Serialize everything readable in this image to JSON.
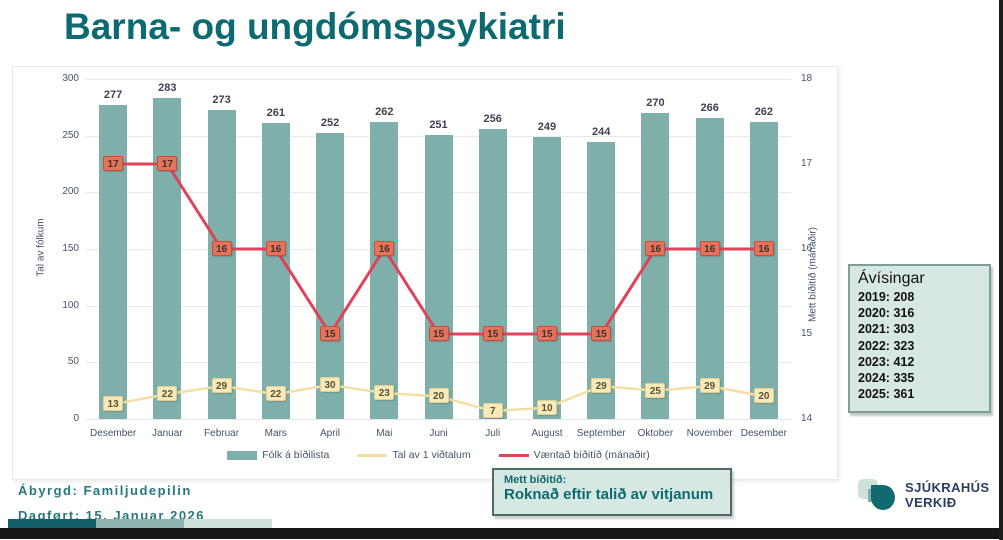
{
  "page_title": "Barna- og ungdómspsykiatri",
  "chart_data": {
    "type": "bar",
    "subtype": "combo bar+line, dual axis",
    "categories": [
      "Desember",
      "Januar",
      "Februar",
      "Mars",
      "April",
      "Mai",
      "Juni",
      "Juli",
      "August",
      "September",
      "Oktober",
      "November",
      "Desember"
    ],
    "series": [
      {
        "name": "Fólk á bíðilista",
        "type": "bar",
        "axis": "left",
        "color": "#7fafaa",
        "values": [
          277,
          283,
          273,
          261,
          252,
          262,
          251,
          256,
          249,
          244,
          270,
          266,
          262
        ]
      },
      {
        "name": "Tal av 1 viðtalum",
        "type": "line",
        "axis": "left",
        "color": "#f3dfa3",
        "marker_bg": "#f8e9ba",
        "marker_border": "#e3cf92",
        "marker_text_color": "#5c5032",
        "values": [
          13,
          22,
          29,
          22,
          30,
          23,
          20,
          7,
          10,
          29,
          25,
          29,
          20
        ]
      },
      {
        "name": "Væntað bíðitíð (mánaðir)",
        "type": "line",
        "axis": "right",
        "color": "#e04257",
        "marker_bg": "#e2745c",
        "marker_border": "#c94c42",
        "marker_text_color": "#46302a",
        "values": [
          17,
          17,
          16,
          16,
          15,
          16,
          15,
          15,
          15,
          15,
          16,
          16,
          16
        ]
      }
    ],
    "left_axis": {
      "label": "Tal av fólkum",
      "ticks": [
        0,
        50,
        100,
        150,
        200,
        250,
        300
      ],
      "range": [
        0,
        300
      ]
    },
    "right_axis": {
      "label": "Mett bíðitíð (mánaðir)",
      "ticks": [
        14,
        15,
        16,
        17,
        18
      ],
      "range": [
        14,
        18
      ]
    },
    "grid": true,
    "legend_position": "bottom"
  },
  "avisingar_box": {
    "title": "Ávísingar",
    "items": [
      "2019: 208",
      "2020: 316",
      "2021: 303",
      "2022: 323",
      "2023: 412",
      "2024: 335",
      "2025: 361"
    ]
  },
  "note_box": {
    "heading": "Mett bíðitíð:",
    "text": "Roknað eftir talið av vitjanum"
  },
  "footer": {
    "abyrgd": "Ábyrgd: Familjudepilin",
    "dagfort": "Dagført: 15. Januar 2026"
  },
  "logo": {
    "line1": "SJÚKRAHÚS",
    "line2": "VERKIÐ"
  },
  "colors": {
    "title": "#0c6a70",
    "bar": "#7fafaa",
    "line_visits": "#f3dfa3",
    "line_wait": "#e04257",
    "box_bg": "#d7e8e2",
    "deco_segments": [
      "#135f68",
      "#8fb3ae",
      "#cfe1dc"
    ]
  }
}
